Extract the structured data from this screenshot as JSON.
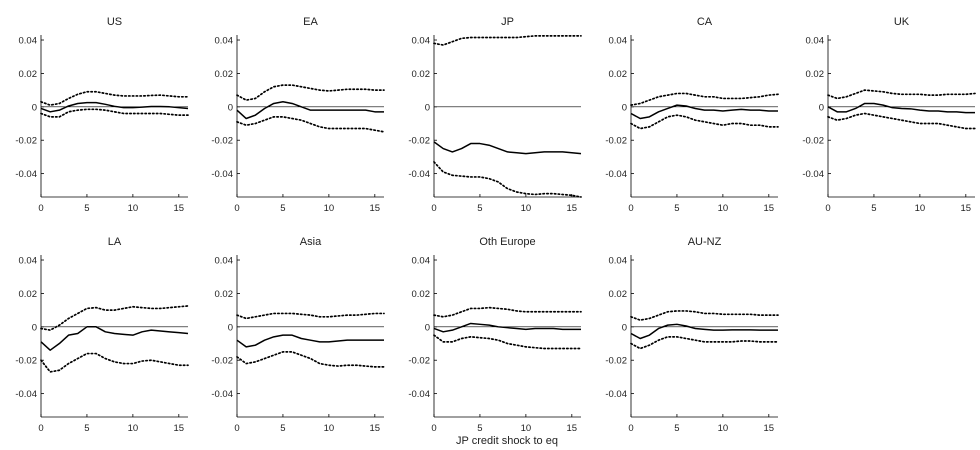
{
  "figure": {
    "xlabel": "JP credit shock to eq"
  },
  "chart_data": [
    {
      "type": "line",
      "title": "US",
      "x": [
        0,
        1,
        2,
        3,
        4,
        5,
        6,
        7,
        8,
        9,
        10,
        11,
        12,
        13,
        14,
        15,
        16
      ],
      "xlim": [
        0,
        16
      ],
      "ylim": [
        -0.054,
        0.043
      ],
      "xticks": [
        0,
        5,
        10,
        15
      ],
      "yticks": [
        -0.04,
        -0.02,
        0,
        0.02,
        0.04
      ],
      "ytick_labels": [
        "-0.04",
        "-0.02",
        "0",
        "0.02",
        "0.04"
      ],
      "show_ytick_labels": true,
      "zero_line": true,
      "series": [
        {
          "style": "solid",
          "values": [
            -0.001,
            -0.003,
            -0.002,
            0.0005,
            0.002,
            0.0025,
            0.0025,
            0.0015,
            0.0003,
            -0.0005,
            -0.0005,
            -0.0002,
            0.0002,
            0.0002,
            0.0,
            -0.0005,
            -0.001
          ]
        },
        {
          "style": "dotted",
          "values": [
            0.003,
            0.001,
            0.002,
            0.005,
            0.0075,
            0.009,
            0.009,
            0.008,
            0.007,
            0.0065,
            0.0065,
            0.0065,
            0.0068,
            0.007,
            0.0065,
            0.006,
            0.006
          ]
        },
        {
          "style": "dotted",
          "values": [
            -0.004,
            -0.006,
            -0.006,
            -0.003,
            -0.002,
            -0.0015,
            -0.0015,
            -0.002,
            -0.003,
            -0.004,
            -0.004,
            -0.004,
            -0.004,
            -0.004,
            -0.0045,
            -0.005,
            -0.005
          ]
        }
      ]
    },
    {
      "type": "line",
      "title": "EA",
      "x": [
        0,
        1,
        2,
        3,
        4,
        5,
        6,
        7,
        8,
        9,
        10,
        11,
        12,
        13,
        14,
        15,
        16
      ],
      "xlim": [
        0,
        16
      ],
      "ylim": [
        -0.054,
        0.043
      ],
      "xticks": [
        0,
        5,
        10,
        15
      ],
      "yticks": [
        -0.04,
        -0.02,
        0,
        0.02,
        0.04
      ],
      "ytick_labels": [
        "-0.04",
        "-0.02",
        "0",
        "0.02",
        "0.04"
      ],
      "show_ytick_labels": true,
      "zero_line": true,
      "series": [
        {
          "style": "solid",
          "values": [
            -0.002,
            -0.007,
            -0.005,
            -0.001,
            0.002,
            0.003,
            0.002,
            0.0,
            -0.002,
            -0.002,
            -0.002,
            -0.002,
            -0.002,
            -0.002,
            -0.002,
            -0.003,
            -0.003
          ]
        },
        {
          "style": "dotted",
          "values": [
            0.007,
            0.004,
            0.005,
            0.009,
            0.012,
            0.013,
            0.013,
            0.012,
            0.011,
            0.01,
            0.0095,
            0.01,
            0.0105,
            0.0105,
            0.0105,
            0.01,
            0.01
          ]
        },
        {
          "style": "dotted",
          "values": [
            -0.009,
            -0.011,
            -0.01,
            -0.008,
            -0.006,
            -0.006,
            -0.007,
            -0.008,
            -0.01,
            -0.012,
            -0.013,
            -0.013,
            -0.013,
            -0.013,
            -0.013,
            -0.014,
            -0.015
          ]
        }
      ]
    },
    {
      "type": "line",
      "title": "JP",
      "x": [
        0,
        1,
        2,
        3,
        4,
        5,
        6,
        7,
        8,
        9,
        10,
        11,
        12,
        13,
        14,
        15,
        16
      ],
      "xlim": [
        0,
        16
      ],
      "ylim": [
        -0.054,
        0.043
      ],
      "xticks": [
        0,
        5,
        10,
        15
      ],
      "yticks": [
        -0.04,
        -0.02,
        0,
        0.02,
        0.04
      ],
      "ytick_labels": [
        "-0.04",
        "-0.02",
        "0",
        "0.02",
        "0.04"
      ],
      "show_ytick_labels": true,
      "zero_line": true,
      "series": [
        {
          "style": "solid",
          "values": [
            -0.021,
            -0.025,
            -0.027,
            -0.025,
            -0.022,
            -0.022,
            -0.023,
            -0.025,
            -0.027,
            -0.0275,
            -0.028,
            -0.0275,
            -0.027,
            -0.027,
            -0.027,
            -0.0275,
            -0.028
          ]
        },
        {
          "style": "dotted",
          "values": [
            0.038,
            0.037,
            0.039,
            0.041,
            0.0415,
            0.0415,
            0.0415,
            0.0415,
            0.0415,
            0.0415,
            0.042,
            0.0425,
            0.0425,
            0.0425,
            0.0425,
            0.0425,
            0.0425
          ]
        },
        {
          "style": "dotted",
          "values": [
            -0.033,
            -0.039,
            -0.041,
            -0.0415,
            -0.042,
            -0.042,
            -0.043,
            -0.045,
            -0.049,
            -0.051,
            -0.052,
            -0.0525,
            -0.052,
            -0.052,
            -0.0525,
            -0.053,
            -0.054
          ]
        }
      ]
    },
    {
      "type": "line",
      "title": "CA",
      "x": [
        0,
        1,
        2,
        3,
        4,
        5,
        6,
        7,
        8,
        9,
        10,
        11,
        12,
        13,
        14,
        15,
        16
      ],
      "xlim": [
        0,
        16
      ],
      "ylim": [
        -0.054,
        0.043
      ],
      "xticks": [
        0,
        5,
        10,
        15
      ],
      "yticks": [
        -0.04,
        -0.02,
        0,
        0.02,
        0.04
      ],
      "ytick_labels": [
        "-0.04",
        "-0.02",
        "0",
        "0.02",
        "0.04"
      ],
      "show_ytick_labels": true,
      "zero_line": true,
      "series": [
        {
          "style": "solid",
          "values": [
            -0.004,
            -0.007,
            -0.006,
            -0.003,
            -0.001,
            0.001,
            0.0005,
            -0.001,
            -0.002,
            -0.002,
            -0.0025,
            -0.002,
            -0.0015,
            -0.002,
            -0.002,
            -0.0025,
            -0.0025
          ]
        },
        {
          "style": "dotted",
          "values": [
            0.001,
            0.002,
            0.004,
            0.006,
            0.007,
            0.008,
            0.008,
            0.007,
            0.006,
            0.006,
            0.005,
            0.005,
            0.005,
            0.0055,
            0.006,
            0.007,
            0.0075
          ]
        },
        {
          "style": "dotted",
          "values": [
            -0.01,
            -0.013,
            -0.012,
            -0.009,
            -0.006,
            -0.005,
            -0.006,
            -0.008,
            -0.009,
            -0.01,
            -0.011,
            -0.01,
            -0.01,
            -0.011,
            -0.011,
            -0.012,
            -0.012
          ]
        }
      ]
    },
    {
      "type": "line",
      "title": "UK",
      "x": [
        0,
        1,
        2,
        3,
        4,
        5,
        6,
        7,
        8,
        9,
        10,
        11,
        12,
        13,
        14,
        15,
        16
      ],
      "xlim": [
        0,
        16
      ],
      "ylim": [
        -0.054,
        0.043
      ],
      "xticks": [
        0,
        5,
        10,
        15
      ],
      "yticks": [
        -0.04,
        -0.02,
        0,
        0.02,
        0.04
      ],
      "ytick_labels": [
        "-0.04",
        "-0.02",
        "0",
        "0.02",
        "0.04"
      ],
      "show_ytick_labels": true,
      "zero_line": true,
      "series": [
        {
          "style": "solid",
          "values": [
            0.0,
            -0.003,
            -0.003,
            -0.001,
            0.002,
            0.002,
            0.001,
            -0.0005,
            -0.001,
            -0.0012,
            -0.002,
            -0.0025,
            -0.0025,
            -0.003,
            -0.003,
            -0.0035,
            -0.0035
          ]
        },
        {
          "style": "dotted",
          "values": [
            0.007,
            0.005,
            0.006,
            0.008,
            0.01,
            0.0095,
            0.009,
            0.008,
            0.0075,
            0.0075,
            0.0075,
            0.007,
            0.007,
            0.0075,
            0.0075,
            0.0075,
            0.008
          ]
        },
        {
          "style": "dotted",
          "values": [
            -0.006,
            -0.008,
            -0.007,
            -0.005,
            -0.004,
            -0.005,
            -0.006,
            -0.007,
            -0.008,
            -0.009,
            -0.01,
            -0.01,
            -0.01,
            -0.011,
            -0.012,
            -0.013,
            -0.013
          ]
        }
      ]
    },
    {
      "type": "line",
      "title": "LA",
      "x": [
        0,
        1,
        2,
        3,
        4,
        5,
        6,
        7,
        8,
        9,
        10,
        11,
        12,
        13,
        14,
        15,
        16
      ],
      "xlim": [
        0,
        16
      ],
      "ylim": [
        -0.054,
        0.043
      ],
      "xticks": [
        0,
        5,
        10,
        15
      ],
      "yticks": [
        -0.04,
        -0.02,
        0,
        0.02,
        0.04
      ],
      "ytick_labels": [
        "-0.04",
        "-0.02",
        "0",
        "0.02",
        "0.04"
      ],
      "show_ytick_labels": true,
      "zero_line": true,
      "series": [
        {
          "style": "solid",
          "values": [
            -0.009,
            -0.014,
            -0.01,
            -0.005,
            -0.004,
            0.0,
            0.0,
            -0.003,
            -0.004,
            -0.0045,
            -0.005,
            -0.003,
            -0.002,
            -0.0025,
            -0.003,
            -0.0035,
            -0.004
          ]
        },
        {
          "style": "dotted",
          "values": [
            -0.001,
            -0.002,
            0.001,
            0.005,
            0.008,
            0.011,
            0.0115,
            0.01,
            0.01,
            0.011,
            0.012,
            0.0115,
            0.011,
            0.011,
            0.0115,
            0.012,
            0.0125
          ]
        },
        {
          "style": "dotted",
          "values": [
            -0.02,
            -0.027,
            -0.026,
            -0.022,
            -0.019,
            -0.016,
            -0.016,
            -0.019,
            -0.021,
            -0.022,
            -0.022,
            -0.0205,
            -0.02,
            -0.021,
            -0.022,
            -0.023,
            -0.023
          ]
        }
      ]
    },
    {
      "type": "line",
      "title": "Asia",
      "x": [
        0,
        1,
        2,
        3,
        4,
        5,
        6,
        7,
        8,
        9,
        10,
        11,
        12,
        13,
        14,
        15,
        16
      ],
      "xlim": [
        0,
        16
      ],
      "ylim": [
        -0.054,
        0.043
      ],
      "xticks": [
        0,
        5,
        10,
        15
      ],
      "yticks": [
        -0.04,
        -0.02,
        0,
        0.02,
        0.04
      ],
      "ytick_labels": [
        "-0.04",
        "-0.02",
        "0",
        "0.02",
        "0.04"
      ],
      "show_ytick_labels": true,
      "zero_line": true,
      "series": [
        {
          "style": "solid",
          "values": [
            -0.008,
            -0.012,
            -0.011,
            -0.008,
            -0.006,
            -0.005,
            -0.005,
            -0.007,
            -0.008,
            -0.009,
            -0.009,
            -0.0085,
            -0.008,
            -0.008,
            -0.008,
            -0.008,
            -0.008
          ]
        },
        {
          "style": "dotted",
          "values": [
            0.007,
            0.005,
            0.006,
            0.007,
            0.008,
            0.008,
            0.008,
            0.0075,
            0.007,
            0.006,
            0.006,
            0.0065,
            0.007,
            0.007,
            0.0075,
            0.008,
            0.008
          ]
        },
        {
          "style": "dotted",
          "values": [
            -0.018,
            -0.022,
            -0.021,
            -0.019,
            -0.017,
            -0.015,
            -0.015,
            -0.017,
            -0.019,
            -0.022,
            -0.023,
            -0.0235,
            -0.023,
            -0.023,
            -0.0235,
            -0.024,
            -0.024
          ]
        }
      ]
    },
    {
      "type": "line",
      "title": "Oth Europe",
      "x": [
        0,
        1,
        2,
        3,
        4,
        5,
        6,
        7,
        8,
        9,
        10,
        11,
        12,
        13,
        14,
        15,
        16
      ],
      "xlim": [
        0,
        16
      ],
      "ylim": [
        -0.054,
        0.043
      ],
      "xticks": [
        0,
        5,
        10,
        15
      ],
      "yticks": [
        -0.04,
        -0.02,
        0,
        0.02,
        0.04
      ],
      "ytick_labels": [
        "-0.04",
        "-0.02",
        "0",
        "0.02",
        "0.04"
      ],
      "show_ytick_labels": true,
      "zero_line": true,
      "series": [
        {
          "style": "solid",
          "values": [
            -0.001,
            -0.003,
            -0.002,
            0.0,
            0.002,
            0.0015,
            0.001,
            0.0,
            -0.0005,
            -0.001,
            -0.0015,
            -0.001,
            -0.001,
            -0.001,
            -0.0015,
            -0.0015,
            -0.0015
          ]
        },
        {
          "style": "dotted",
          "values": [
            0.007,
            0.006,
            0.007,
            0.009,
            0.011,
            0.011,
            0.0115,
            0.011,
            0.0105,
            0.0095,
            0.009,
            0.009,
            0.009,
            0.009,
            0.009,
            0.009,
            0.009
          ]
        },
        {
          "style": "dotted",
          "values": [
            -0.005,
            -0.009,
            -0.009,
            -0.007,
            -0.006,
            -0.0065,
            -0.007,
            -0.008,
            -0.01,
            -0.011,
            -0.012,
            -0.0125,
            -0.013,
            -0.013,
            -0.013,
            -0.013,
            -0.013
          ]
        }
      ]
    },
    {
      "type": "line",
      "title": "AU-NZ",
      "x": [
        0,
        1,
        2,
        3,
        4,
        5,
        6,
        7,
        8,
        9,
        10,
        11,
        12,
        13,
        14,
        15,
        16
      ],
      "xlim": [
        0,
        16
      ],
      "ylim": [
        -0.054,
        0.043
      ],
      "xticks": [
        0,
        5,
        10,
        15
      ],
      "yticks": [
        -0.04,
        -0.02,
        0,
        0.02,
        0.04
      ],
      "ytick_labels": [
        "-0.04",
        "-0.02",
        "0",
        "0.02",
        "0.04"
      ],
      "show_ytick_labels": true,
      "zero_line": true,
      "series": [
        {
          "style": "solid",
          "values": [
            -0.004,
            -0.007,
            -0.005,
            -0.001,
            0.001,
            0.0015,
            0.0005,
            -0.001,
            -0.0015,
            -0.002,
            -0.002,
            -0.0018,
            -0.0018,
            -0.0018,
            -0.002,
            -0.002,
            -0.002
          ]
        },
        {
          "style": "dotted",
          "values": [
            0.006,
            0.004,
            0.005,
            0.007,
            0.009,
            0.0095,
            0.0095,
            0.009,
            0.008,
            0.008,
            0.0075,
            0.0075,
            0.0075,
            0.0075,
            0.007,
            0.007,
            0.007
          ]
        },
        {
          "style": "dotted",
          "values": [
            -0.01,
            -0.013,
            -0.011,
            -0.008,
            -0.006,
            -0.006,
            -0.007,
            -0.008,
            -0.009,
            -0.009,
            -0.009,
            -0.009,
            -0.0085,
            -0.0085,
            -0.009,
            -0.009,
            -0.009
          ]
        }
      ]
    }
  ]
}
